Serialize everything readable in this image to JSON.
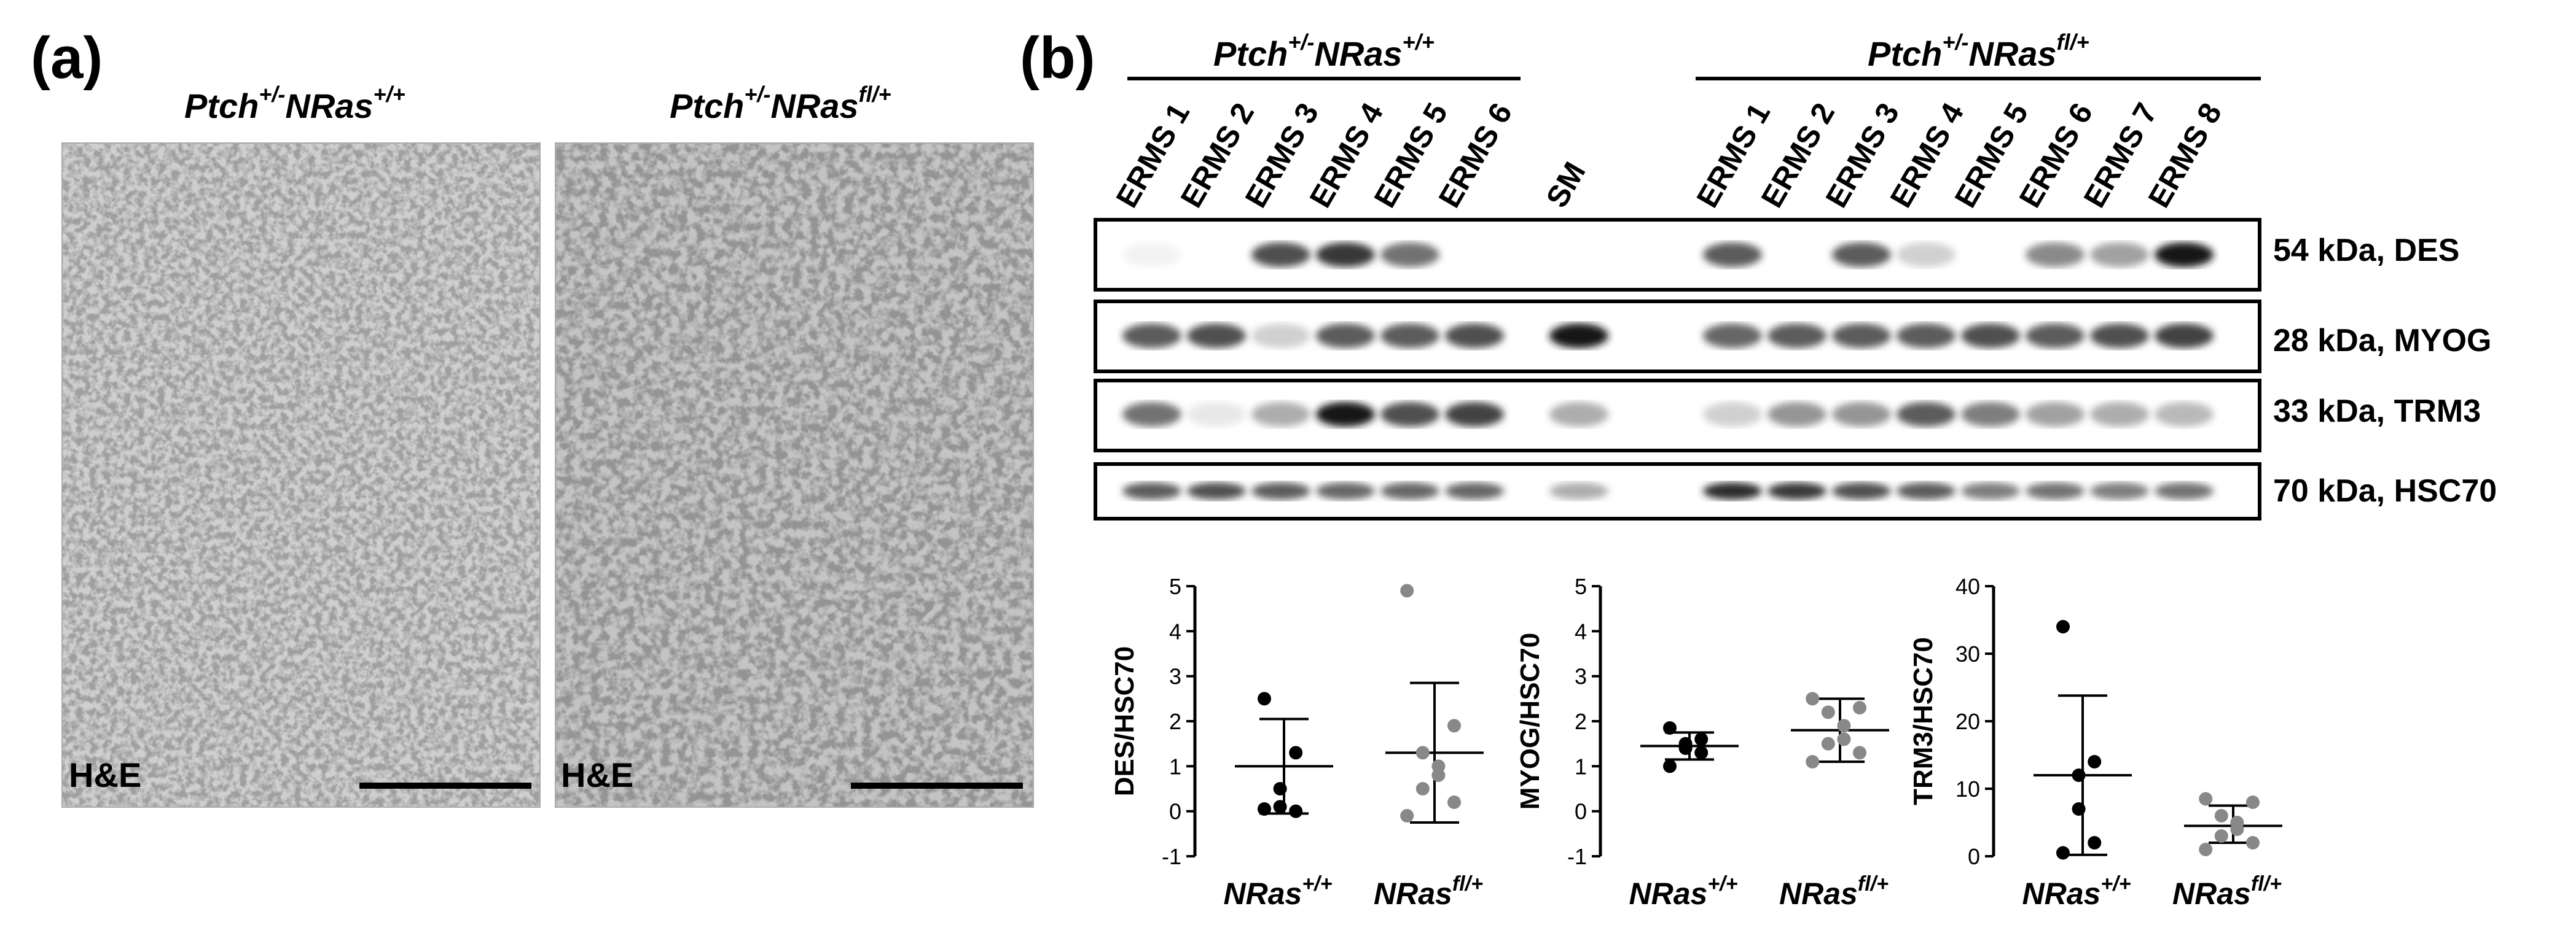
{
  "panel_a": {
    "label": "(a)",
    "images": [
      {
        "genotype_base": "Ptch",
        "genotype_sup1": "+/-",
        "genotype_mid": "NRas",
        "genotype_sup2": "+/+",
        "stain": "H&E"
      },
      {
        "genotype_base": "Ptch",
        "genotype_sup1": "+/-",
        "genotype_mid": "NRas",
        "genotype_sup2": "fl/+",
        "stain": "H&E"
      }
    ]
  },
  "panel_b": {
    "label": "(b)",
    "groups": [
      {
        "base": "Ptch",
        "sup1": "+/-",
        "mid": "NRas",
        "sup2": "+/+"
      },
      {
        "base": "Ptch",
        "sup1": "+/-",
        "mid": "NRas",
        "sup2": "fl/+"
      }
    ],
    "lanes_group1": [
      "ERMS 1",
      "ERMS 2",
      "ERMS 3",
      "ERMS 4",
      "ERMS 5",
      "ERMS 6"
    ],
    "lane_sm": "SM",
    "lanes_group2": [
      "ERMS 1",
      "ERMS 2",
      "ERMS 3",
      "ERMS 4",
      "ERMS 5",
      "ERMS 6",
      "ERMS 7",
      "ERMS 8"
    ],
    "blots": [
      {
        "marker": "54 kDa, DES"
      },
      {
        "marker": "28 kDa, MYOG"
      },
      {
        "marker": "33 kDa, TRM3"
      },
      {
        "marker": "70 kDa, HSC70"
      }
    ]
  },
  "chart_data": [
    {
      "type": "scatter",
      "ylabel": "DES/HSC70",
      "categories": [
        "NRas+/+",
        "NRasfl/+"
      ],
      "category_base": [
        "NRas",
        "NRas"
      ],
      "category_sup": [
        "+/+",
        "fl/+"
      ],
      "ylim": [
        -1,
        5
      ],
      "yticks": [
        "-1",
        "0",
        "1",
        "2",
        "3",
        "4",
        "5"
      ],
      "series": [
        {
          "values": [
            2.5,
            1.3,
            0.5,
            0.1,
            0.0,
            0.05
          ],
          "mean": 1.0,
          "sd_low": -0.05,
          "sd_high": 2.05,
          "color": "#000000"
        },
        {
          "values": [
            4.9,
            1.9,
            1.3,
            1.0,
            0.8,
            0.5,
            0.2,
            -0.1
          ],
          "mean": 1.3,
          "sd_low": -0.25,
          "sd_high": 2.85,
          "color": "#888888"
        }
      ]
    },
    {
      "type": "scatter",
      "ylabel": "MYOG/HSC70",
      "categories": [
        "NRas+/+",
        "NRasfl/+"
      ],
      "category_base": [
        "NRas",
        "NRas"
      ],
      "category_sup": [
        "+/+",
        "fl/+"
      ],
      "ylim": [
        -1,
        5
      ],
      "yticks": [
        "-1",
        "0",
        "1",
        "2",
        "3",
        "4",
        "5"
      ],
      "series": [
        {
          "values": [
            1.85,
            1.6,
            1.5,
            1.4,
            1.3,
            1.0
          ],
          "mean": 1.45,
          "sd_low": 1.15,
          "sd_high": 1.75,
          "color": "#000000"
        },
        {
          "values": [
            2.5,
            2.3,
            2.2,
            1.9,
            1.6,
            1.5,
            1.3,
            1.1
          ],
          "mean": 1.8,
          "sd_low": 1.1,
          "sd_high": 2.5,
          "color": "#888888"
        }
      ]
    },
    {
      "type": "scatter",
      "ylabel": "TRM3/HSC70",
      "categories": [
        "NRas+/+",
        "NRasfl/+"
      ],
      "category_base": [
        "NRas",
        "NRas"
      ],
      "category_sup": [
        "+/+",
        "fl/+"
      ],
      "ylim": [
        0,
        40
      ],
      "yticks": [
        "0",
        "10",
        "20",
        "30",
        "40"
      ],
      "series": [
        {
          "values": [
            34,
            14,
            12,
            7,
            2,
            0.5
          ],
          "mean": 12,
          "sd_low": 0.2,
          "sd_high": 23.8,
          "color": "#000000"
        },
        {
          "values": [
            8.5,
            8,
            6,
            5,
            4,
            3,
            2,
            1
          ],
          "mean": 4.5,
          "sd_low": 2,
          "sd_high": 7.5,
          "color": "#888888"
        }
      ]
    }
  ]
}
